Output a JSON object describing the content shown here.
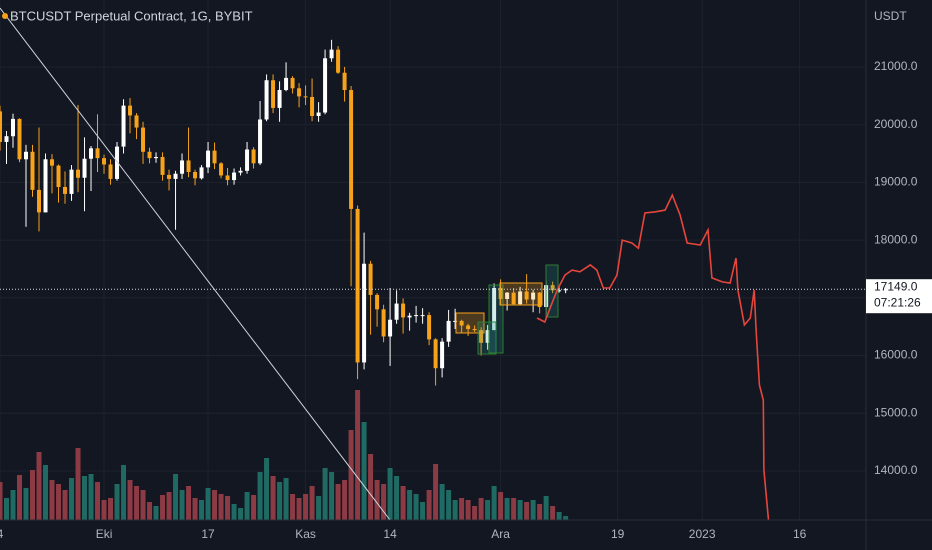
{
  "chart_data": {
    "type": "candlestick",
    "title": "BTCUSDT Perpetual Contract, 1G, BYBIT",
    "y_label": "USDT",
    "x": [
      0,
      1,
      2,
      3,
      4,
      5,
      6,
      7,
      8,
      9,
      10,
      11,
      12,
      13,
      14,
      15,
      16,
      17,
      18,
      19,
      20,
      21,
      22,
      23,
      24,
      25,
      26,
      27,
      28,
      29,
      30,
      31,
      32,
      33,
      34,
      35,
      36,
      37,
      38,
      39,
      40,
      41,
      42,
      43,
      44,
      45,
      46,
      47,
      48,
      49,
      50,
      51,
      52,
      53,
      54,
      55,
      56,
      57,
      58,
      59,
      60,
      61,
      62,
      63,
      64,
      65,
      66,
      67,
      68,
      69,
      70,
      71,
      72,
      73,
      74,
      75,
      76,
      77,
      78,
      79,
      80,
      81,
      82,
      83,
      84,
      85,
      86,
      87
    ],
    "open": [
      20230,
      19700,
      19800,
      20100,
      19400,
      19530,
      18870,
      18480,
      19400,
      19290,
      18920,
      18800,
      19220,
      19080,
      19410,
      19590,
      19420,
      19310,
      19060,
      19620,
      20330,
      20160,
      19950,
      19530,
      19420,
      19440,
      19130,
      19060,
      19150,
      19380,
      19180,
      19070,
      19260,
      19550,
      19330,
      19120,
      19040,
      19170,
      19200,
      19570,
      19330,
      20090,
      20770,
      20290,
      20600,
      20810,
      20630,
      20490,
      20480,
      20150,
      20210,
      21150,
      21300,
      20900,
      20600,
      18540,
      15880,
      17590,
      17050,
      16800,
      16330,
      16620,
      16900,
      16660,
      16690,
      16700,
      16700,
      16280,
      15780,
      16240,
      16600,
      16600,
      16520,
      16460,
      16440,
      16220,
      16440,
      17170,
      16980,
      17090,
      16890,
      17110,
      16970,
      17090,
      16840,
      17220,
      17130,
      17130
    ],
    "high": [
      20330,
      19890,
      20190,
      20110,
      19650,
      19650,
      19950,
      19500,
      19490,
      19310,
      19190,
      19300,
      20340,
      19780,
      19630,
      20180,
      19480,
      19400,
      19700,
      20440,
      20460,
      20200,
      20050,
      19600,
      19520,
      19520,
      19220,
      19200,
      19500,
      19950,
      19220,
      19300,
      19700,
      19690,
      19350,
      19250,
      19240,
      19260,
      19700,
      19610,
      20410,
      20870,
      20870,
      20750,
      21080,
      20840,
      20720,
      20680,
      20800,
      20390,
      21300,
      21470,
      21360,
      21000,
      20670,
      18600,
      18130,
      17640,
      17080,
      16880,
      17170,
      17130,
      16990,
      16740,
      16860,
      16820,
      16750,
      16300,
      16300,
      16790,
      16810,
      16620,
      16550,
      16520,
      16490,
      16530,
      17250,
      17320,
      17100,
      17170,
      17190,
      17410,
      17140,
      17100,
      17300,
      17280,
      17190,
      17170
    ],
    "low": [
      19550,
      19320,
      19600,
      19350,
      18230,
      18750,
      18150,
      18480,
      18810,
      18650,
      18630,
      18680,
      18830,
      18500,
      18850,
      19180,
      19150,
      18960,
      19030,
      19500,
      19850,
      19750,
      19320,
      19330,
      19340,
      19030,
      18860,
      18180,
      19060,
      19090,
      18950,
      19050,
      19160,
      19230,
      19070,
      18950,
      18960,
      19120,
      19150,
      19240,
      19300,
      20060,
      20200,
      20050,
      20580,
      20540,
      20300,
      20340,
      20060,
      20050,
      20180,
      21090,
      20880,
      20400,
      17200,
      15590,
      15760,
      16360,
      16500,
      16230,
      15820,
      16550,
      16380,
      16430,
      16570,
      16550,
      16180,
      15480,
      15620,
      16150,
      16460,
      16400,
      16340,
      16410,
      16000,
      16100,
      16440,
      16870,
      16780,
      16870,
      16880,
      16900,
      16750,
      16730,
      16720,
      17080,
      17090,
      17080
    ],
    "close": [
      19700,
      19800,
      20100,
      19400,
      19530,
      18870,
      18480,
      19400,
      19290,
      18920,
      18800,
      19220,
      19080,
      19410,
      19590,
      19420,
      19310,
      19060,
      19620,
      20330,
      20160,
      19950,
      19530,
      19420,
      19440,
      19130,
      19060,
      19150,
      19380,
      19180,
      19070,
      19260,
      19550,
      19330,
      19120,
      19040,
      19170,
      19200,
      19570,
      19330,
      20090,
      20770,
      20290,
      20600,
      20810,
      20630,
      20490,
      20480,
      20150,
      20210,
      21150,
      21300,
      20900,
      20600,
      18540,
      15880,
      17590,
      17050,
      16800,
      16330,
      16620,
      16900,
      16660,
      16690,
      16700,
      16700,
      16280,
      15780,
      16240,
      16600,
      16600,
      16520,
      16460,
      16440,
      16220,
      16440,
      17170,
      16980,
      17090,
      16890,
      17110,
      16970,
      17090,
      16840,
      17220,
      17130,
      17130,
      17149
    ],
    "volume": [
      38,
      22,
      30,
      45,
      32,
      50,
      68,
      55,
      40,
      36,
      30,
      42,
      72,
      44,
      46,
      38,
      20,
      22,
      36,
      55,
      40,
      34,
      30,
      18,
      14,
      25,
      28,
      46,
      30,
      34,
      22,
      20,
      32,
      30,
      26,
      24,
      16,
      12,
      28,
      25,
      48,
      62,
      44,
      38,
      42,
      26,
      22,
      26,
      34,
      24,
      52,
      48,
      36,
      40,
      90,
      130,
      98,
      66,
      40,
      36,
      52,
      44,
      34,
      30,
      26,
      18,
      30,
      56,
      36,
      30,
      20,
      22,
      20,
      14,
      22,
      20,
      34,
      28,
      22,
      22,
      20,
      18,
      20,
      16,
      24,
      14,
      8,
      4
    ],
    "up_color": "#ffffff",
    "down_color": "#f7a21b",
    "volume_up_color": "#1f6b63",
    "volume_down_color": "#8c3a44",
    "lines": [
      {
        "color": "#e5463c",
        "x": [
          82.6,
          83.8,
          84.8,
          85.7,
          86.9,
          88.0,
          89.2,
          90.8,
          91.8,
          92.8,
          93.8,
          94.9,
          95.7,
          97.2,
          98.2,
          99.2,
          100.8,
          102.3,
          103.4,
          104.6,
          105.7,
          107.7,
          108.9,
          109.5,
          111.1,
          112.3,
          113.2,
          113.5,
          114.5,
          115.4,
          116.0,
          116.3,
          116.8,
          117.4,
          117.5,
          118.2
        ],
        "values": [
          16650,
          16580,
          16875,
          17135,
          17395,
          17480,
          17450,
          17570,
          17480,
          17170,
          17170,
          17395,
          18000,
          17950,
          17860,
          18470,
          18490,
          18520,
          18780,
          18435,
          17950,
          17915,
          18175,
          17345,
          17275,
          17255,
          17690,
          17135,
          16530,
          16650,
          17135,
          16440,
          15490,
          15230,
          14015,
          13150
        ]
      }
    ],
    "last_price": {
      "value": 17149,
      "label": "17149.0"
    },
    "countdown": "07:21:26",
    "xlim": [
      0,
      133.2
    ],
    "xticks": [
      {
        "value": 0,
        "label": "4"
      },
      {
        "value": 16,
        "label": "Eki"
      },
      {
        "value": 32,
        "label": "17"
      },
      {
        "value": 47,
        "label": "Kas"
      },
      {
        "value": 60,
        "label": "14"
      },
      {
        "value": 77,
        "label": "Ara"
      },
      {
        "value": 95,
        "label": "19"
      },
      {
        "value": 108,
        "label": "2023"
      },
      {
        "value": 123,
        "label": "16"
      }
    ],
    "ylim": [
      13150,
      22160
    ],
    "yticks": [
      {
        "value": 14000,
        "label": "14000.0"
      },
      {
        "value": 15000,
        "label": "15000.0"
      },
      {
        "value": 16000,
        "label": "16000.0"
      },
      {
        "value": 17000,
        "label": "17000.0"
      },
      {
        "value": 18000,
        "label": "18000.0"
      },
      {
        "value": 19000,
        "label": "19000.0"
      },
      {
        "value": 20000,
        "label": "20000.0"
      },
      {
        "value": 21000,
        "label": "21000.0"
      }
    ],
    "grid": true
  }
}
